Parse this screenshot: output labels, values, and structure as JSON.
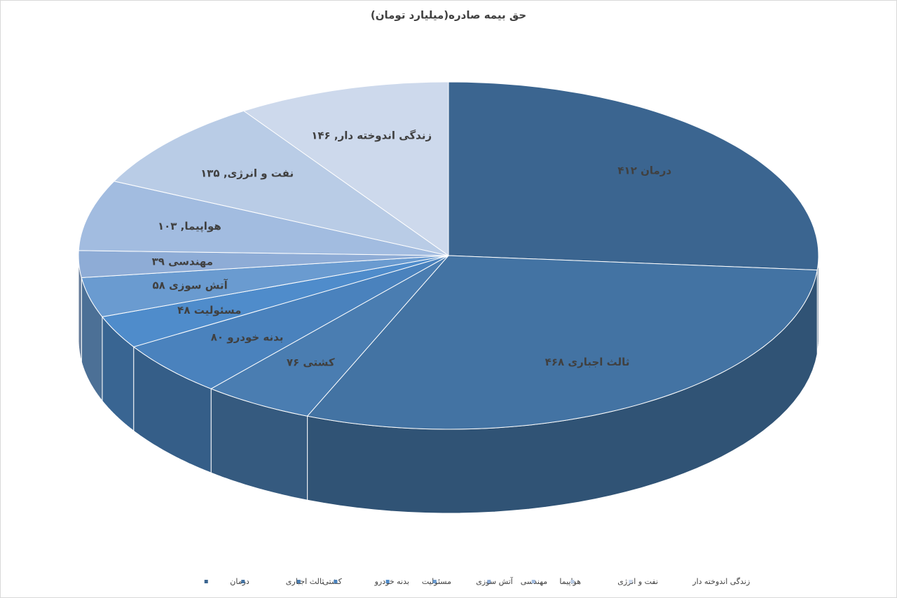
{
  "chart_data": {
    "type": "pie",
    "title": "حق بیمه صادره(میلیارد تومان)",
    "categories": [
      "درمان",
      "ثالث اجباری",
      "کشتی",
      "بدنه خودرو",
      "مسئولیت",
      "آتش سوزی",
      "مهندسی",
      "هواپیما",
      "نفت و انرژی",
      "زندگی اندوخته دار"
    ],
    "values": [
      412,
      468,
      76,
      80,
      48,
      58,
      39,
      103,
      135,
      146
    ],
    "value_labels": [
      "درمان ۴۱۲",
      "ثالث اجباری ۴۶۸",
      "کشتی ۷۶",
      "بدنه خودرو ۸۰",
      "مسئولیت ۴۸",
      "آتش سوزی ۵۸",
      "مهندسی ۳۹",
      "هواپیما, ۱۰۳",
      "نفت و انرژی, ۱۳۵",
      "زندگی اندوخته دار, ۱۴۶"
    ],
    "colors": [
      "#3b6590",
      "#4373a3",
      "#4a7db1",
      "#4a82bd",
      "#4f8ccb",
      "#6a9bd0",
      "#8eacd6",
      "#a2bce0",
      "#b9cce6",
      "#cdd9ec"
    ],
    "legend": "bottom"
  }
}
